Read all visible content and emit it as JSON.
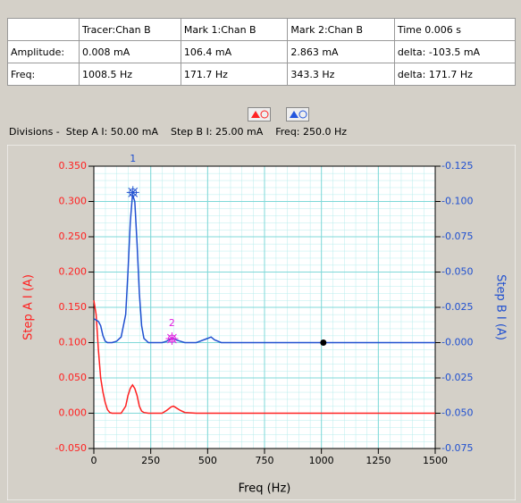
{
  "table": {
    "header": [
      "Tracer:Chan B",
      "Mark 1:Chan B",
      "Mark 2:Chan B",
      "Time 0.006 s"
    ],
    "rows": [
      [
        "Amplitude:",
        "0.008 mA",
        "106.4 mA",
        "2.863 mA",
        "delta: -103.5 mA"
      ],
      [
        "Freq:",
        "1008.5 Hz",
        "171.7 Hz",
        "343.3 Hz",
        "delta: 171.7 Hz"
      ]
    ]
  },
  "status": "Divisions -  Step A I: 50.00 mA    Step B I: 25.00 mA    Freq: 250.0 Hz",
  "chart_data": {
    "type": "line",
    "xlabel": "Freq (Hz)",
    "ylabel": "Step A I (A)",
    "y2label": "Step B I (A)",
    "xlim": [
      0,
      1500
    ],
    "xticks": [
      0,
      250,
      500,
      750,
      1000,
      1250,
      1500
    ],
    "ylim": [
      -0.05,
      0.35
    ],
    "yticks": [
      {
        "value": -0.05,
        "label": "-0.050"
      },
      {
        "value": 0,
        "label": "0.000"
      },
      {
        "value": 0.05,
        "label": "0.050"
      },
      {
        "value": 0.1,
        "label": "0.100"
      },
      {
        "value": 0.15,
        "label": "0.150"
      },
      {
        "value": 0.2,
        "label": "0.200"
      },
      {
        "value": 0.25,
        "label": "0.250"
      },
      {
        "value": 0.3,
        "label": "0.300"
      },
      {
        "value": 0.35,
        "label": "0.350"
      }
    ],
    "y2lim": [
      -0.075,
      0.125
    ],
    "y2ticks": [
      {
        "value": -0.075,
        "label": "-0.075"
      },
      {
        "value": -0.05,
        "label": "-0.050"
      },
      {
        "value": -0.025,
        "label": "-0.025"
      },
      {
        "value": 0,
        "label": "-0.000"
      },
      {
        "value": 0.025,
        "label": "-0.025"
      },
      {
        "value": 0.05,
        "label": "-0.050"
      },
      {
        "value": 0.075,
        "label": "-0.075"
      },
      {
        "value": 0.1,
        "label": "-0.100"
      },
      {
        "value": 0.125,
        "label": "-0.125"
      }
    ],
    "grid": true,
    "x": [
      0,
      10,
      20,
      30,
      40,
      50,
      60,
      70,
      80,
      100,
      120,
      140,
      150,
      160,
      170,
      180,
      190,
      200,
      210,
      220,
      240,
      260,
      300,
      320,
      340,
      350,
      360,
      380,
      400,
      450,
      500,
      515,
      530,
      560,
      600,
      800,
      1000,
      1200,
      1500
    ],
    "series": [
      {
        "name": "Step A I",
        "color": "#ff2020",
        "values": [
          0.16,
          0.14,
          0.09,
          0.05,
          0.03,
          0.015,
          0.005,
          0.001,
          0,
          0,
          0,
          0.01,
          0.025,
          0.035,
          0.04,
          0.035,
          0.025,
          0.01,
          0.003,
          0.001,
          0,
          0,
          0,
          0.004,
          0.009,
          0.01,
          0.008,
          0.004,
          0.001,
          0,
          0,
          0,
          0,
          0,
          0,
          0,
          0,
          0,
          0
        ]
      },
      {
        "name": "Step B I",
        "color": "#2050d0",
        "axis": "y2",
        "values": [
          0.017,
          0.016,
          0.015,
          0.012,
          0.005,
          0.001,
          0,
          0,
          0,
          0.001,
          0.004,
          0.02,
          0.05,
          0.085,
          0.105,
          0.1,
          0.07,
          0.035,
          0.012,
          0.003,
          0,
          0,
          0,
          0.001,
          0.003,
          0.003,
          0.002,
          0.001,
          0,
          0,
          0.003,
          0.004,
          0.002,
          0,
          0,
          0,
          0,
          0,
          0
        ]
      }
    ],
    "markers": [
      {
        "label": "1",
        "x": 171.7,
        "y": 0.1064,
        "color": "#2050d0"
      },
      {
        "label": "2",
        "x": 343.3,
        "y": 0.002863,
        "color": "#e020e0"
      },
      {
        "x": 1008.5,
        "y": 8e-06,
        "color": "#000000"
      }
    ]
  }
}
